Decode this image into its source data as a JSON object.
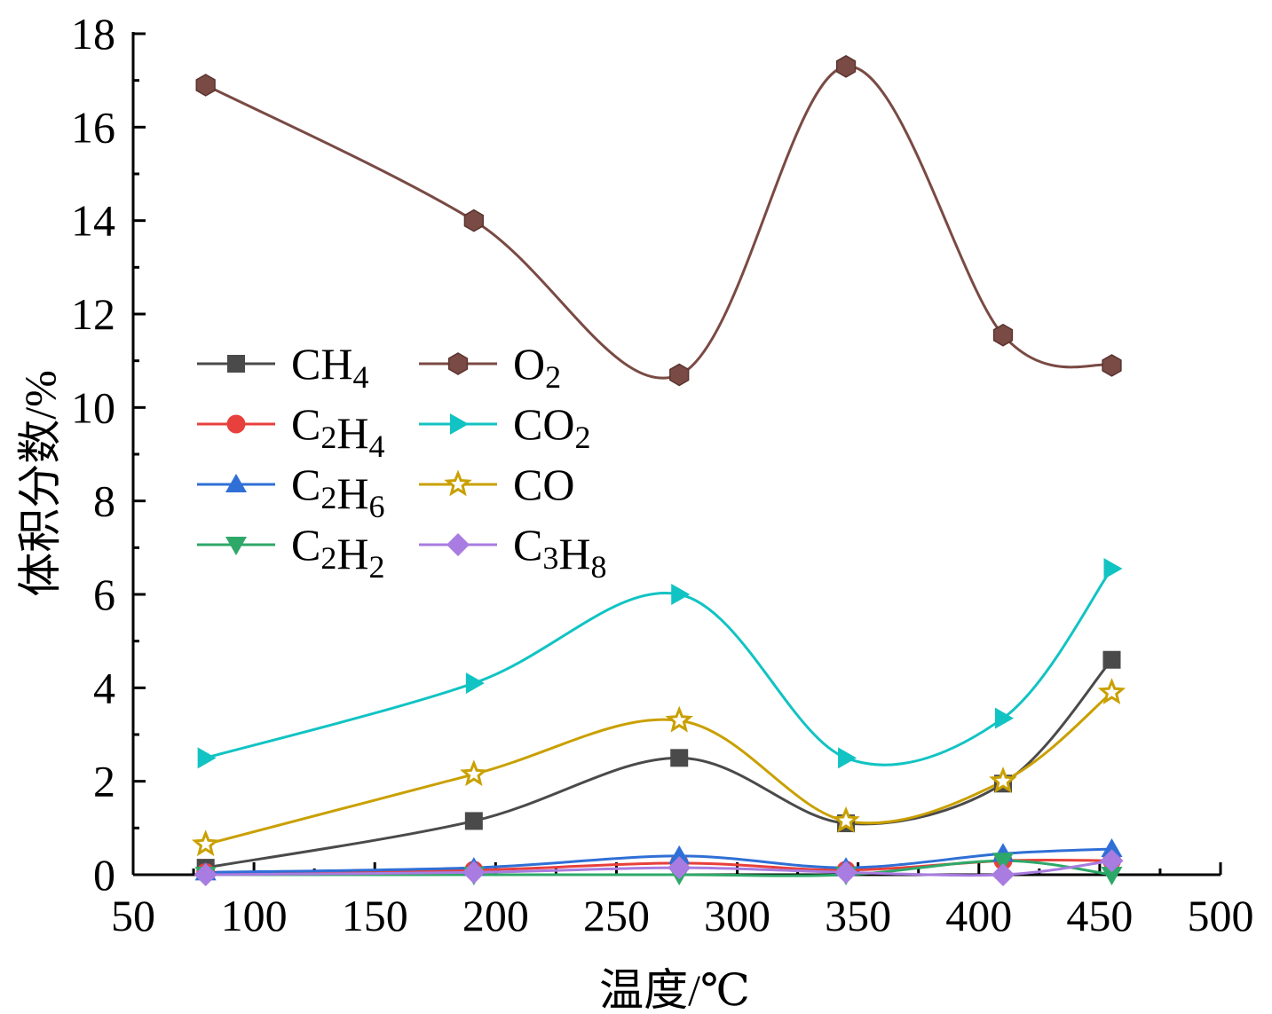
{
  "chart_data": {
    "type": "line",
    "title": "",
    "xlabel": "温度/℃",
    "ylabel": "体积分数/%",
    "xlim": [
      50,
      500
    ],
    "ylim": [
      0,
      18
    ],
    "x_ticks": [
      "50",
      "100",
      "150",
      "200",
      "250",
      "300",
      "350",
      "400",
      "450",
      "500"
    ],
    "y_ticks": [
      "0",
      "2",
      "4",
      "6",
      "8",
      "10",
      "12",
      "14",
      "16",
      "18"
    ],
    "x": [
      80,
      191,
      276,
      345,
      410,
      455
    ],
    "legend_position": "center-left",
    "series": [
      {
        "name": "CH4",
        "label_main": "CH",
        "label_sub": "4",
        "label_tail": "",
        "marker": "square",
        "color": "#4a4a4a",
        "values": [
          0.15,
          1.15,
          2.5,
          1.1,
          1.95,
          4.6
        ]
      },
      {
        "name": "C2H4",
        "label_main": "C",
        "label_sub": "2",
        "label_tail": "H",
        "label_sub2": "4",
        "marker": "circle",
        "color": "#e8403c",
        "values": [
          0.05,
          0.1,
          0.25,
          0.1,
          0.3,
          0.3
        ]
      },
      {
        "name": "C2H6",
        "label_main": "C",
        "label_sub": "2",
        "label_tail": "H",
        "label_sub2": "6",
        "marker": "triangle-up",
        "color": "#2f6fd6",
        "values": [
          0.05,
          0.15,
          0.4,
          0.15,
          0.45,
          0.55
        ]
      },
      {
        "name": "C2H2",
        "label_main": "C",
        "label_sub": "2",
        "label_tail": "H",
        "label_sub2": "2",
        "marker": "triangle-down",
        "color": "#2ea868",
        "values": [
          0.0,
          0.0,
          0.0,
          0.0,
          0.3,
          0.0
        ]
      },
      {
        "name": "O2",
        "label_main": "O",
        "label_sub": "2",
        "label_tail": "",
        "marker": "hexagon",
        "color": "#7a4a44",
        "values": [
          16.9,
          14.0,
          10.7,
          17.3,
          11.55,
          10.9
        ]
      },
      {
        "name": "CO2",
        "label_main": "CO",
        "label_sub": "2",
        "label_tail": "",
        "marker": "triangle-right",
        "color": "#12c3c3",
        "values": [
          2.5,
          4.1,
          6.0,
          2.5,
          3.35,
          6.55
        ]
      },
      {
        "name": "CO",
        "label_main": "CO",
        "label_sub": "",
        "label_tail": "",
        "marker": "star",
        "color": "#c9a000",
        "values": [
          0.65,
          2.15,
          3.3,
          1.15,
          2.0,
          3.9
        ]
      },
      {
        "name": "C3H8",
        "label_main": "C",
        "label_sub": "3",
        "label_tail": "H",
        "label_sub2": "8",
        "marker": "diamond",
        "color": "#a87ce0",
        "values": [
          0.0,
          0.05,
          0.15,
          0.05,
          0.0,
          0.3
        ]
      }
    ]
  }
}
